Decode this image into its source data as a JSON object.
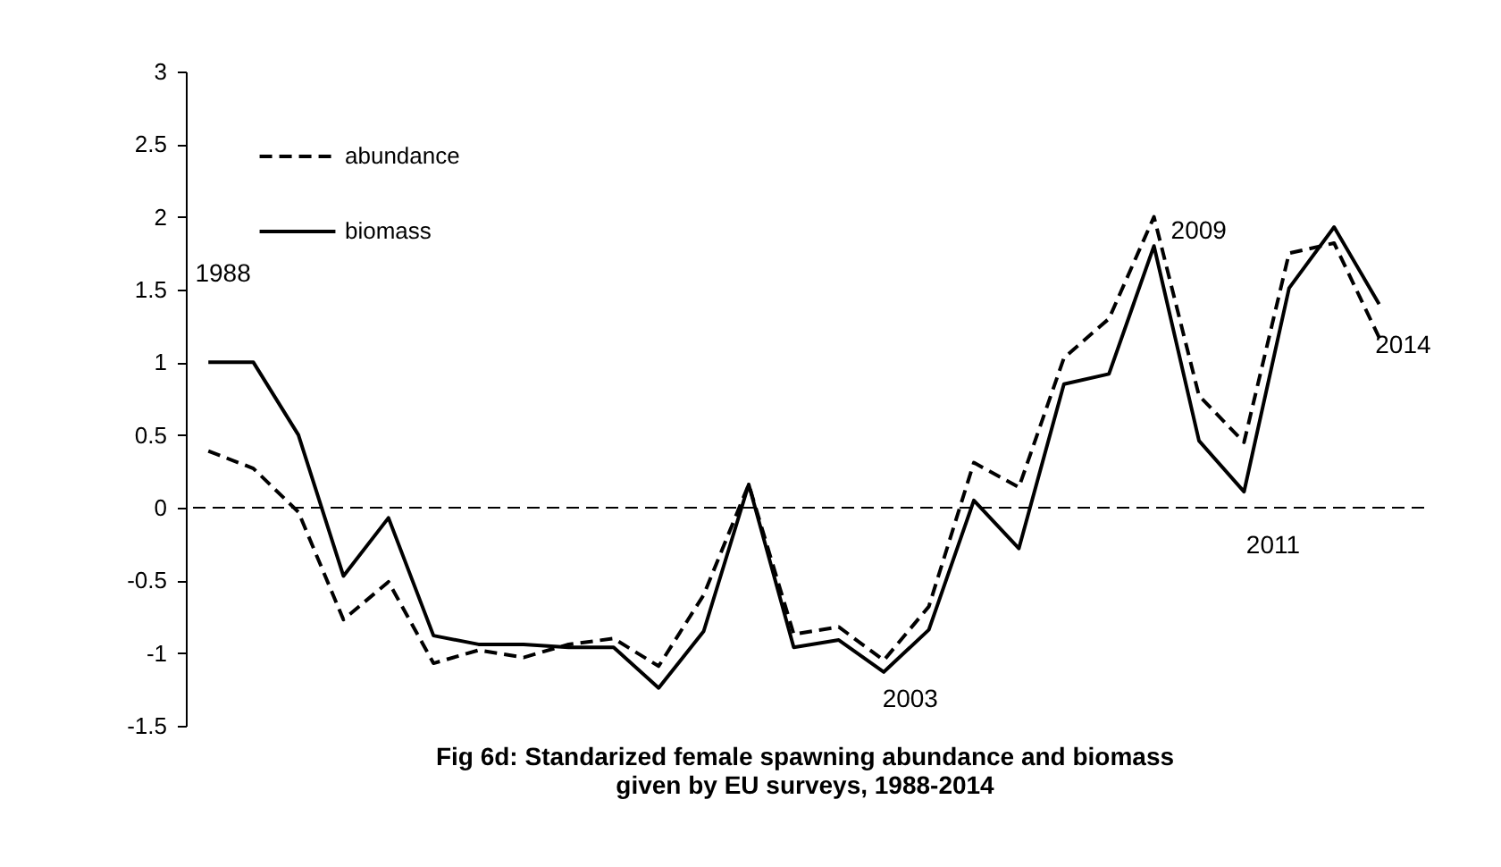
{
  "chart_data": {
    "type": "line",
    "title": "Fig  6d: Standarized female spawning abundance and biomass\ngiven by EU surveys, 1988-2014",
    "categories": [
      null,
      null,
      null,
      null,
      null,
      null,
      null,
      null,
      null,
      null,
      null,
      null,
      null,
      null,
      null,
      null,
      null,
      null,
      null,
      null,
      null,
      null,
      null,
      null,
      null,
      null,
      null
    ],
    "series": [
      {
        "name": "abundance",
        "color": "#000000",
        "line_style": "dashed",
        "values": [
          0.39,
          0.27,
          -0.03,
          -0.77,
          -0.51,
          -1.07,
          -0.98,
          -1.03,
          -0.94,
          -0.9,
          -1.09,
          -0.6,
          0.16,
          -0.87,
          -0.82,
          -1.05,
          -0.68,
          0.31,
          0.14,
          1.03,
          1.3,
          2.0,
          0.77,
          0.45,
          1.75,
          1.82,
          1.17
        ]
      },
      {
        "name": "biomass",
        "color": "#000000",
        "line_style": "solid",
        "values": [
          1.0,
          1.0,
          0.5,
          -0.47,
          -0.07,
          -0.88,
          -0.94,
          -0.94,
          -0.96,
          -0.96,
          -1.24,
          -0.85,
          0.16,
          -0.96,
          -0.91,
          -1.13,
          -0.84,
          0.05,
          -0.28,
          0.85,
          0.92,
          1.8,
          0.46,
          0.11,
          1.51,
          1.93,
          1.4
        ]
      }
    ],
    "ylim": [
      -1.5,
      3
    ],
    "yticks": [
      -1.5,
      -1,
      -0.5,
      0,
      0.5,
      1,
      1.5,
      2,
      2.5,
      3
    ],
    "tick_labels": "y",
    "grid": false,
    "legend": "top left",
    "marker": "none",
    "ref_lines": [
      {
        "axis": "y",
        "value": 0,
        "color": "#000000",
        "line_style": "dashed"
      }
    ],
    "annotations": [
      "1988",
      "2003",
      "2009",
      "2011",
      "2014"
    ]
  }
}
